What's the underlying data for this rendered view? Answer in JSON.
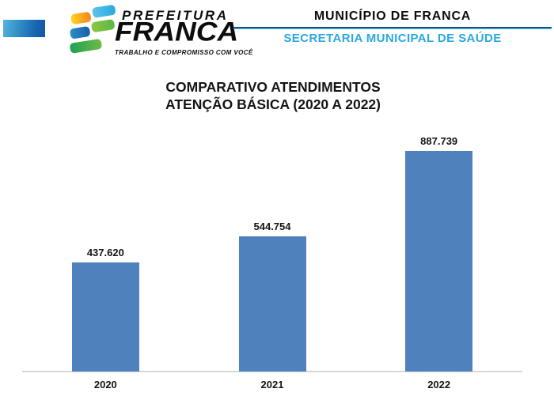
{
  "header": {
    "logo": {
      "brand_top": "PREFEITURA",
      "brand_main": "FRANCA",
      "tagline": "TRABALHO E COMPROMISSO COM VOCÊ"
    },
    "right": {
      "title": "MUNICÍPIO DE FRANCA",
      "subtitle": "SECRETARIA MUNICIPAL DE SAÚDE",
      "subtitle_color": "#29a9e1"
    }
  },
  "chart_data": {
    "type": "bar",
    "title_line1": "COMPARATIVO ATENDIMENTOS",
    "title_line2": "ATENÇÃO BÁSICA (2020 A 2022)",
    "categories": [
      "2020",
      "2021",
      "2022"
    ],
    "values": [
      437620,
      544754,
      887739
    ],
    "value_labels": [
      "437.620",
      "544.754",
      "887.739"
    ],
    "xlabel": "",
    "ylabel": "",
    "ylim": [
      0,
      900000
    ],
    "grid": false,
    "legend": false,
    "bar_color": "#4f81bd",
    "axis_color": "#d6d6d6"
  },
  "colors": {
    "accent_bar_left": "#55b4de",
    "accent_bar_right": "#0f57a5",
    "divider_dark": "#1b3a66",
    "divider_light": "#44b5e8",
    "text": "#141414"
  }
}
